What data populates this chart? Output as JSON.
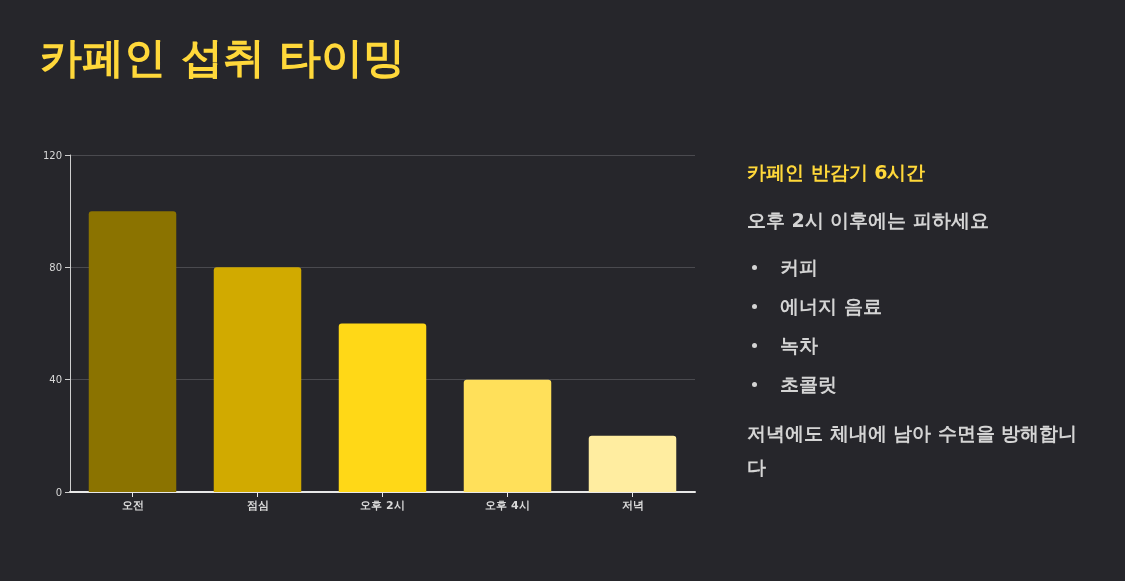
{
  "chart_data": {
    "type": "bar",
    "title": "카페인 섭취 타이밍",
    "categories": [
      "오전",
      "점심",
      "오후 2시",
      "오후 4시",
      "저녁"
    ],
    "values": [
      100,
      80,
      60,
      40,
      20
    ],
    "colors": [
      "#8b7300",
      "#d1aa00",
      "#ffd817",
      "#ffe05a",
      "#ffeda0"
    ],
    "ylim": [
      0,
      120
    ],
    "yticks": [
      0,
      40,
      80,
      120
    ],
    "grid": "y",
    "annotations": [
      "카페인 반감기 6시간",
      "오후 2시 이후에는 피하세요",
      "커피",
      "에너지 음료",
      "녹차",
      "초콜릿",
      "저녁에도 체내에 남아 수면을 방해합니다"
    ]
  }
}
